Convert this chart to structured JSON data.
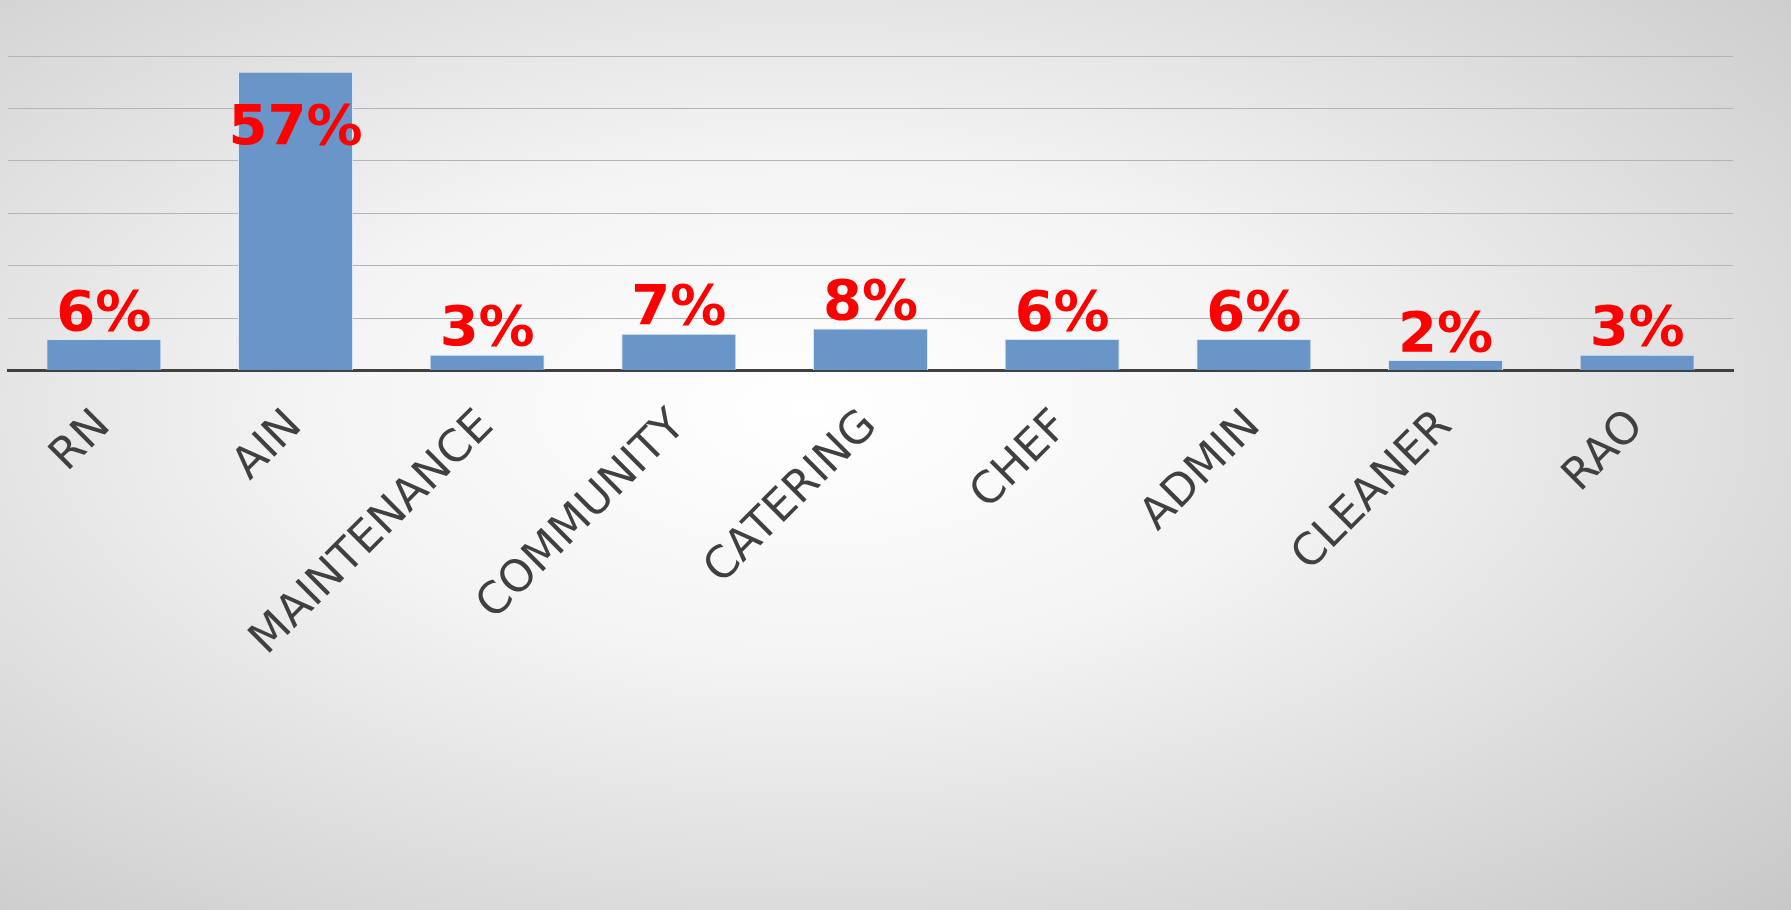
{
  "chart_data": {
    "type": "bar",
    "categories": [
      "RN",
      "AIN",
      "MAINTENANCE",
      "COMMUNITY",
      "CATERING",
      "CHEF",
      "ADMIN",
      "CLEANER",
      "RAO"
    ],
    "values": [
      6,
      57,
      3,
      7,
      8,
      6,
      6,
      2,
      3
    ],
    "color": "#6a95c8",
    "ylim": [
      0,
      60
    ],
    "yticks": [
      {
        "value": 0,
        "label": null
      },
      {
        "value": 10,
        "label": null
      },
      {
        "value": 20,
        "label": null
      },
      {
        "value": 30,
        "label": null
      },
      {
        "value": 40,
        "label": null
      },
      {
        "value": 50,
        "label": null
      },
      {
        "value": 60,
        "label": null
      }
    ],
    "value_labels": [
      "6%",
      "57%",
      "3%",
      "7%",
      "8%",
      "6%",
      "6%",
      "2%",
      "3%"
    ],
    "tick_labels": "x",
    "grid": "y",
    "legend": false
  }
}
